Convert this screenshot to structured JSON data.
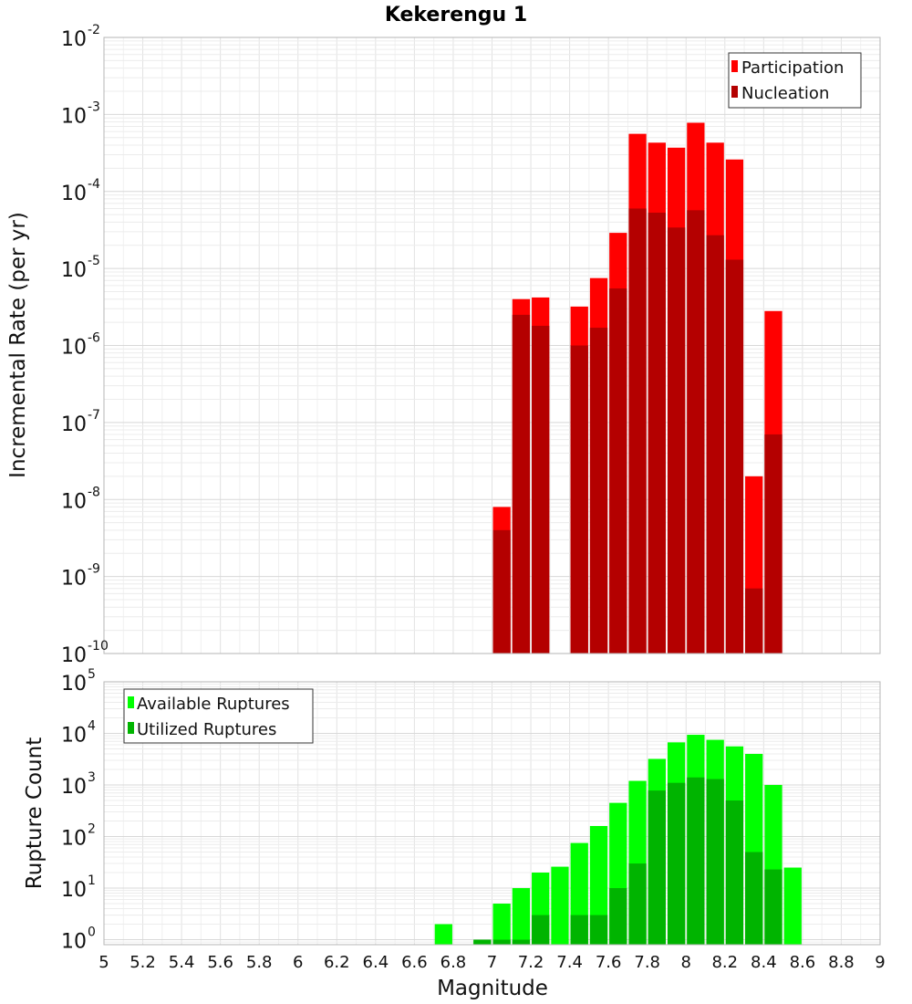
{
  "chart_data": [
    {
      "type": "bar",
      "title": "Kekerengu 1",
      "xlabel": "Magnitude",
      "ylabel": "Incremental Rate (per yr)",
      "y_scale": "log",
      "ylim": [
        1e-10,
        0.01
      ],
      "xlim": [
        5,
        9
      ],
      "grid": true,
      "legend_position": "top-right",
      "bin_width": 0.1,
      "x": [
        7.05,
        7.15,
        7.25,
        7.35,
        7.45,
        7.55,
        7.65,
        7.75,
        7.85,
        7.95,
        8.05,
        8.15,
        8.25,
        8.35,
        8.45
      ],
      "series": [
        {
          "name": "Participation",
          "color": "#ff0000",
          "values": [
            8e-09,
            4e-06,
            4.2e-06,
            null,
            3.2e-06,
            7.5e-06,
            2.9e-05,
            0.00056,
            0.00043,
            0.00037,
            0.00078,
            0.00043,
            0.00026,
            2e-08,
            2.8e-06
          ]
        },
        {
          "name": "Nucleation",
          "color": "#b40000",
          "values": [
            4e-09,
            2.5e-06,
            1.8e-06,
            null,
            1e-06,
            1.7e-06,
            5.5e-06,
            6e-05,
            5.3e-05,
            3.4e-05,
            5.7e-05,
            2.7e-05,
            1.3e-05,
            7e-10,
            7e-08
          ]
        }
      ]
    },
    {
      "type": "bar",
      "xlabel": "Magnitude",
      "ylabel": "Rupture Count",
      "y_scale": "log",
      "ylim": [
        0.8,
        100000
      ],
      "xlim": [
        5,
        9
      ],
      "grid": true,
      "legend_position": "top-left",
      "bin_width": 0.1,
      "x": [
        6.75,
        6.85,
        6.95,
        7.05,
        7.15,
        7.25,
        7.35,
        7.45,
        7.55,
        7.65,
        7.75,
        7.85,
        7.95,
        8.05,
        8.15,
        8.25,
        8.35,
        8.45,
        8.55
      ],
      "series": [
        {
          "name": "Available Ruptures",
          "color": "#00ff00",
          "values": [
            2,
            null,
            1,
            5,
            10,
            20,
            26,
            75,
            160,
            450,
            1200,
            3200,
            6700,
            9400,
            7500,
            5600,
            4000,
            1000,
            25
          ]
        },
        {
          "name": "Utilized Ruptures",
          "color": "#00b400",
          "values": [
            null,
            null,
            1,
            1,
            1,
            3,
            null,
            3,
            3,
            10,
            30,
            780,
            1100,
            1400,
            1300,
            500,
            50,
            23,
            null
          ]
        }
      ]
    }
  ],
  "x_ticks": [
    "5",
    "5.2",
    "5.4",
    "5.6",
    "5.8",
    "6",
    "6.2",
    "6.4",
    "6.6",
    "6.8",
    "7",
    "7.2",
    "7.4",
    "7.6",
    "7.8",
    "8",
    "8.2",
    "8.4",
    "8.6",
    "8.8",
    "9"
  ],
  "top_y_ticks": [
    {
      "base": "10",
      "exp": "-10"
    },
    {
      "base": "10",
      "exp": "-9"
    },
    {
      "base": "10",
      "exp": "-8"
    },
    {
      "base": "10",
      "exp": "-7"
    },
    {
      "base": "10",
      "exp": "-6"
    },
    {
      "base": "10",
      "exp": "-5"
    },
    {
      "base": "10",
      "exp": "-4"
    },
    {
      "base": "10",
      "exp": "-3"
    },
    {
      "base": "10",
      "exp": "-2"
    }
  ],
  "bottom_y_ticks": [
    {
      "base": "10",
      "exp": "0"
    },
    {
      "base": "10",
      "exp": "1"
    },
    {
      "base": "10",
      "exp": "2"
    },
    {
      "base": "10",
      "exp": "3"
    },
    {
      "base": "10",
      "exp": "4"
    },
    {
      "base": "10",
      "exp": "5"
    }
  ]
}
